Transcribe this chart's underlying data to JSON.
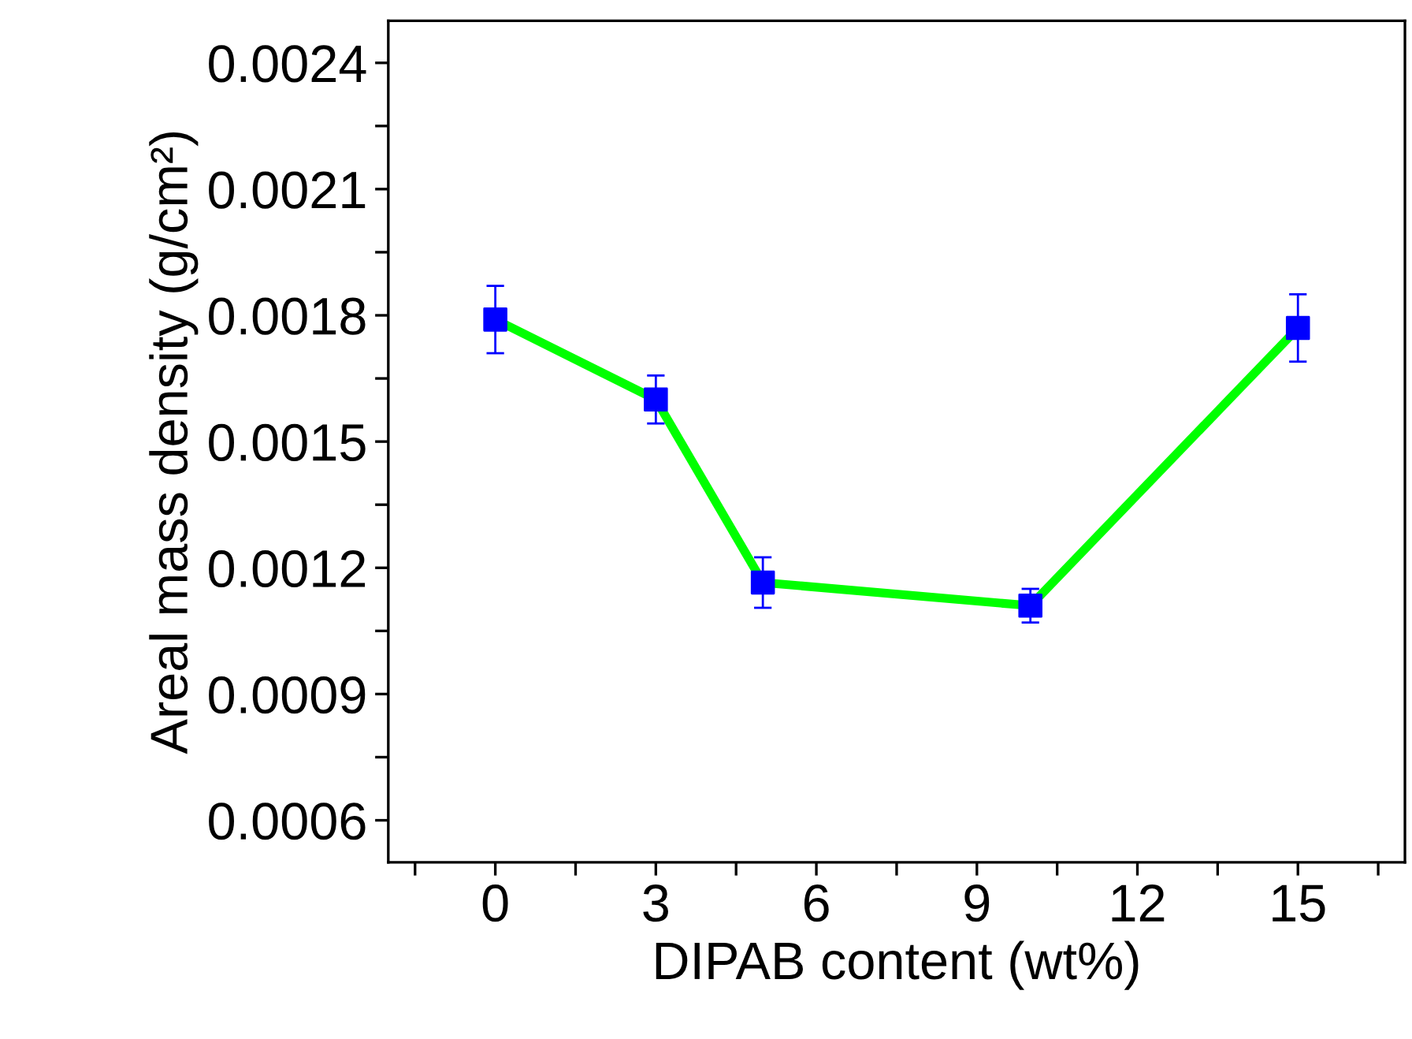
{
  "chart_data": {
    "type": "line",
    "xlabel": "DIPAB content (wt%)",
    "ylabel": "Areal mass density (g/cm²)",
    "x": [
      0,
      3,
      5,
      10,
      15
    ],
    "series": [
      {
        "color": "#00ff00",
        "colors": [
          "#0000ff",
          "#0000ff",
          "#0000ff",
          "#0000ff",
          "#0000ff"
        ],
        "values": [
          0.00179,
          0.0016,
          0.001165,
          0.00111,
          0.00177
        ],
        "errors": [
          8e-05,
          5.7e-05,
          6e-05,
          4e-05,
          8e-05
        ]
      }
    ],
    "marker": "square",
    "line_style": "solid",
    "xlim": [
      -2,
      17
    ],
    "ylim": [
      0.0005,
      0.0025
    ],
    "xticks": [
      {
        "value": -1.5,
        "label": null
      },
      0,
      {
        "value": 1.5,
        "label": null
      },
      3,
      {
        "value": 4.5,
        "label": null
      },
      6,
      {
        "value": 7.5,
        "label": null
      },
      9,
      {
        "value": 10.5,
        "label": null
      },
      12,
      {
        "value": 13.5,
        "label": null
      },
      15,
      {
        "value": 16.5,
        "label": null
      }
    ],
    "yticks": [
      {
        "value": 0.0006,
        "label": "0.0006"
      },
      {
        "value": 0.00075,
        "label": null
      },
      {
        "value": 0.0009,
        "label": "0.0009"
      },
      {
        "value": 0.00105,
        "label": null
      },
      {
        "value": 0.0012,
        "label": "0.0012"
      },
      {
        "value": 0.00135,
        "label": null
      },
      {
        "value": 0.0015,
        "label": "0.0015"
      },
      {
        "value": 0.00165,
        "label": null
      },
      {
        "value": 0.0018,
        "label": "0.0018"
      },
      {
        "value": 0.00195,
        "label": null
      },
      {
        "value": 0.0021,
        "label": "0.0021"
      },
      {
        "value": 0.00225,
        "label": null
      },
      {
        "value": 0.0024,
        "label": "0.0024"
      }
    ],
    "grid": false,
    "legend": false
  }
}
